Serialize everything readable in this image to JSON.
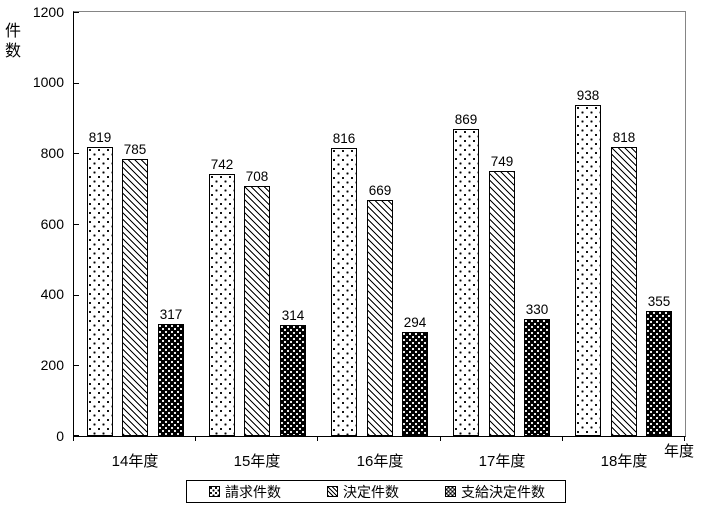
{
  "chart_data": {
    "type": "bar",
    "title": "",
    "ylabel": "件数",
    "xlabel": "年度",
    "categories": [
      "14年度",
      "15年度",
      "16年度",
      "17年度",
      "18年度"
    ],
    "series": [
      {
        "name": "請求件数",
        "pattern": "dots-on-white",
        "values": [
          819,
          742,
          816,
          869,
          938
        ]
      },
      {
        "name": "決定件数",
        "pattern": "diagonal-hatch",
        "values": [
          785,
          708,
          669,
          749,
          818
        ]
      },
      {
        "name": "支給決定件数",
        "pattern": "dots-on-black",
        "values": [
          317,
          314,
          294,
          330,
          355
        ]
      }
    ],
    "ylim": [
      0,
      1200
    ],
    "yticks": [
      0,
      200,
      400,
      600,
      800,
      1000,
      1200
    ],
    "bar_labels": true,
    "legend_position": "bottom",
    "grid": false
  },
  "colors": {
    "background": "#ffffff",
    "text": "#000000",
    "axis": "#000000",
    "plot_border_top_right": "#858585",
    "bar_border": "#000000"
  }
}
